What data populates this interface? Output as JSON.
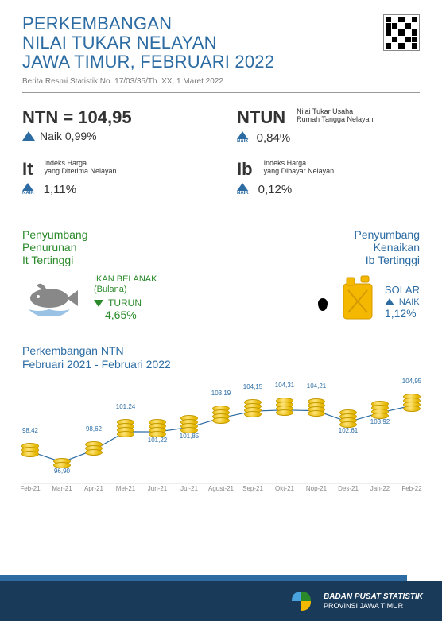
{
  "title": {
    "line1": "PERKEMBANGAN",
    "line2": "NILAI TUKAR NELAYAN",
    "line3": "JAWA TIMUR, FEBRUARI 2022"
  },
  "subtitle": "Berita Resmi Statistik No. 17/03/35/Th. XX, 1 Maret 2022",
  "ntn": {
    "label": "NTN = 104,95",
    "change_text": "Naik 0,99%"
  },
  "ntun": {
    "label": "NTUN",
    "desc_l1": "Nilai Tukar Usaha",
    "desc_l2": "Rumah Tangga Nelayan",
    "naik": "NAIK",
    "pct": "0,84%"
  },
  "it": {
    "label": "It",
    "desc_l1": "Indeks Harga",
    "desc_l2": "yang Diterima Nelayan",
    "naik": "NAIK",
    "pct": "1,11%"
  },
  "ib": {
    "label": "Ib",
    "desc_l1": "Indeks Harga",
    "desc_l2": "yang Dibayar Nelayan",
    "naik": "NAIK",
    "pct": "0,12%"
  },
  "contrib_left": {
    "title_l1": "Penyumbang",
    "title_l2": "Penurunan",
    "title_l3": "It Tertinggi",
    "item_l1": "IKAN BELANAK",
    "item_l2": "(Bulana)",
    "dir": "TURUN",
    "pct": "4,65%"
  },
  "contrib_right": {
    "title_l1": "Penyumbang",
    "title_l2": "Kenaikan",
    "title_l3": "Ib Tertinggi",
    "item": "SOLAR",
    "dir": "NAIK",
    "pct": "1,12%"
  },
  "chart": {
    "title_l1": "Perkembangan NTN",
    "title_l2": "Februari 2021 - Februari 2022",
    "line_color": "#2c6ca3",
    "label_color": "#2c6ca3",
    "x_labels": [
      "Feb-21",
      "Mar-21",
      "Apr-21",
      "Mei-21",
      "Jun-21",
      "Jul-21",
      "Agust-21",
      "Sep-21",
      "Okt-21",
      "Nop-21",
      "Des-21",
      "Jan-22",
      "Feb-22"
    ],
    "values": [
      98.42,
      96.9,
      98.62,
      101.24,
      101.22,
      101.85,
      103.19,
      104.15,
      104.31,
      104.21,
      102.61,
      103.92,
      104.95
    ],
    "display": [
      "98,42",
      "96,90",
      "98,62",
      "101,24",
      "101,22",
      "101,85",
      "103,19",
      "104,15",
      "104,31",
      "104,21",
      "102,61",
      "103,92",
      "104,95"
    ],
    "ymin": 95,
    "ymax": 107
  },
  "footer": {
    "line1": "BADAN PUSAT STATISTIK",
    "line2": "PROVINSI JAWA TIMUR"
  },
  "colors": {
    "primary": "#2c6ca3",
    "green": "#2a8a2a",
    "footer_dark": "#1a3a5a"
  }
}
